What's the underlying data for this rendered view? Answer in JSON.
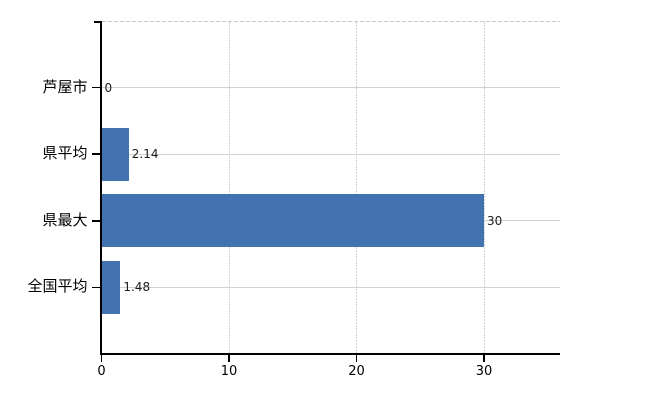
{
  "chart_data": {
    "type": "bar",
    "orientation": "horizontal",
    "title": "",
    "xlabel": "",
    "ylabel": "",
    "categories": [
      "芦屋市",
      "県平均",
      "県最大",
      "全国平均"
    ],
    "values": [
      0,
      2.14,
      30,
      1.48
    ],
    "data_labels": [
      "0",
      "2.14",
      "30",
      "1.48"
    ],
    "x_ticks": [
      0,
      10,
      20,
      30
    ],
    "x_tick_labels": [
      "0",
      "10",
      "20",
      "30"
    ],
    "xlim": [
      0,
      36
    ],
    "grid": true,
    "legend": false,
    "colors": {
      "bar": "#4273b0",
      "axis": "#000000",
      "h_gridline": "#ccd6cc",
      "v_gridline_a": "#d9cdd6",
      "v_gridline_b": "#ccd6cc",
      "top_border": "#c9c9c9",
      "category_label": "#000000",
      "value_label": "#1c1c1c",
      "background": "#ffffff"
    }
  }
}
